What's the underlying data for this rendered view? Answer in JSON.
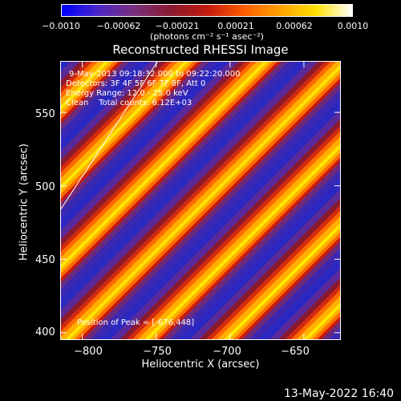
{
  "colorbar": {
    "tick_labels": [
      "−0.0010",
      "−0.00062",
      "−0.00021",
      "0.00021",
      "0.00062",
      "0.0010"
    ],
    "units_label": "(photons cm⁻² s⁻¹ asec⁻²)",
    "colormap": [
      "#0000ff",
      "#4b26c8",
      "#7a2f7e",
      "#8a1a30",
      "#c21a10",
      "#ff5a00",
      "#ffa000",
      "#ffe000",
      "#ffffff"
    ]
  },
  "title": "Reconstructed RHESSI Image",
  "annotations": {
    "line1": "9-May-2013 09:18:32.000 to 09:22:20.000",
    "line2": "Detectors: 3F 4F 5F 6F 7F 8F, Att 0",
    "line3": "Energy Range: 12.0 - 25.0 keV",
    "line4": "Clean    Total counts: 6.12E+03",
    "peak": "Position of Peak = [-676,448]"
  },
  "axes": {
    "xlabel": "Heliocentric X (arcsec)",
    "ylabel": "Heliocentric Y (arcsec)",
    "xticks": [
      {
        "value": -800,
        "label": "−800"
      },
      {
        "value": -750,
        "label": "−750"
      },
      {
        "value": -700,
        "label": "−700"
      },
      {
        "value": -650,
        "label": "−650"
      }
    ],
    "yticks": [
      {
        "value": 550,
        "label": "550"
      },
      {
        "value": 500,
        "label": "500"
      },
      {
        "value": 450,
        "label": "450"
      },
      {
        "value": 400,
        "label": "400"
      }
    ],
    "xlim": [
      -815,
      -625
    ],
    "ylim": [
      395,
      585
    ]
  },
  "footer": "13-May-2022 16:40"
}
